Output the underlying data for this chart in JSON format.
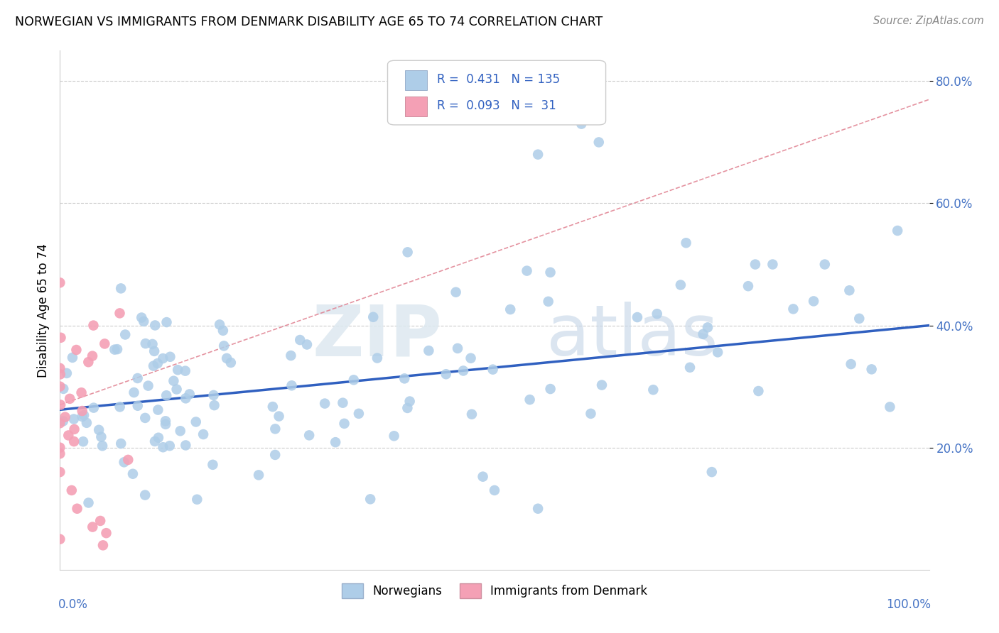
{
  "title": "NORWEGIAN VS IMMIGRANTS FROM DENMARK DISABILITY AGE 65 TO 74 CORRELATION CHART",
  "source": "Source: ZipAtlas.com",
  "ylabel": "Disability Age 65 to 74",
  "legend_label_1": "Norwegians",
  "legend_label_2": "Immigrants from Denmark",
  "R1": 0.431,
  "N1": 135,
  "R2": 0.093,
  "N2": 31,
  "color_norwegian": "#aecde8",
  "color_denmark": "#f4a0b5",
  "color_line_norwegian": "#3060c0",
  "color_line_denmark": "#e08090",
  "xlim": [
    0.0,
    1.0
  ],
  "ylim": [
    0.0,
    0.85
  ],
  "yticks": [
    0.2,
    0.4,
    0.6,
    0.8
  ],
  "ytick_labels": [
    "20.0%",
    "40.0%",
    "60.0%",
    "80.0%"
  ]
}
